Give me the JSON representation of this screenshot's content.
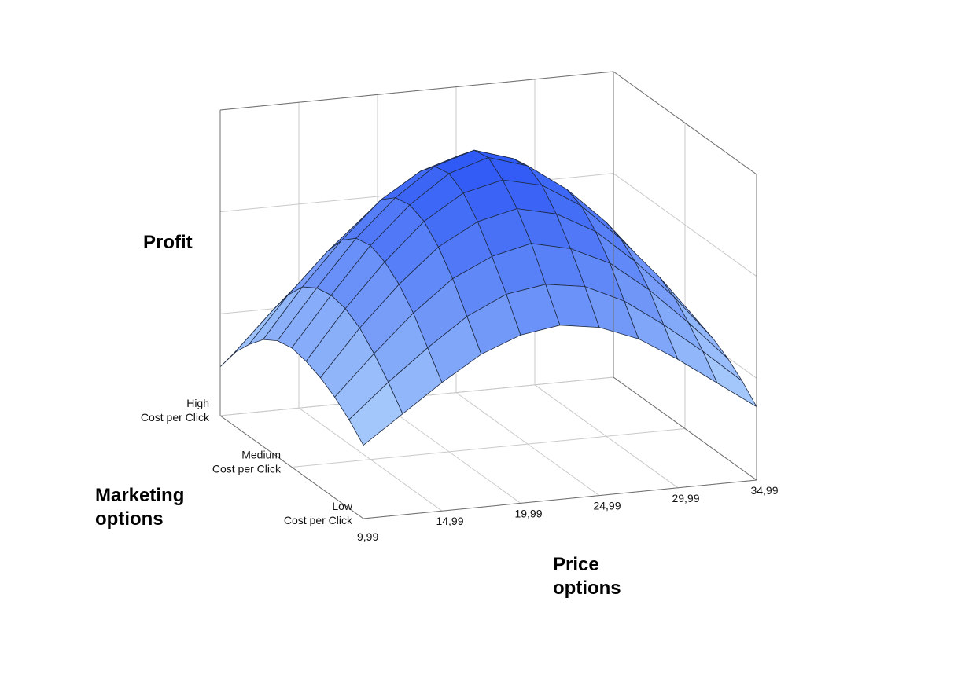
{
  "chart_data": {
    "type": "surface",
    "title": "",
    "zlabel": "Profit",
    "ylabel": [
      "Marketing",
      "options"
    ],
    "xlabel": [
      "Price",
      "options"
    ],
    "x_ticks": [
      "9,99",
      "14,99",
      "19,99",
      "24,99",
      "29,99",
      "34,99"
    ],
    "y_ticks": [
      [
        "Low",
        "Cost per Click"
      ],
      [
        "Medium",
        "Cost per Click"
      ],
      [
        "High",
        "Cost per Click"
      ]
    ],
    "x_range": [
      9.99,
      34.99
    ],
    "y_range": [
      "Low Cost per Click",
      "High Cost per Click"
    ],
    "z_range": [
      0,
      1
    ],
    "grid": true,
    "color_low": "#b9dcfb",
    "color_high": "#2b55f5",
    "surface": {
      "description_of_values": "relative profit (0-1 of z range), rows = marketing option from Low to High, columns = price 9,99 to 34,99",
      "x": [
        9.99,
        12.49,
        14.99,
        17.49,
        19.99,
        22.49,
        24.99,
        27.49,
        29.99,
        32.49,
        34.99
      ],
      "y": [
        0,
        0.1,
        0.2,
        0.3,
        0.4,
        0.5,
        0.6,
        0.7,
        0.8,
        0.9,
        1.0
      ],
      "z": [
        [
          0.24,
          0.33,
          0.42,
          0.5,
          0.55,
          0.57,
          0.55,
          0.5,
          0.42,
          0.33,
          0.24
        ],
        [
          0.29,
          0.4,
          0.5,
          0.59,
          0.65,
          0.67,
          0.65,
          0.59,
          0.5,
          0.4,
          0.29
        ],
        [
          0.33,
          0.46,
          0.58,
          0.68,
          0.74,
          0.77,
          0.74,
          0.68,
          0.58,
          0.46,
          0.33
        ],
        [
          0.36,
          0.51,
          0.64,
          0.75,
          0.82,
          0.85,
          0.82,
          0.75,
          0.64,
          0.51,
          0.36
        ],
        [
          0.38,
          0.54,
          0.68,
          0.8,
          0.88,
          0.91,
          0.88,
          0.8,
          0.68,
          0.54,
          0.38
        ],
        [
          0.39,
          0.55,
          0.7,
          0.82,
          0.91,
          0.95,
          0.91,
          0.82,
          0.7,
          0.55,
          0.39
        ],
        [
          0.38,
          0.54,
          0.69,
          0.81,
          0.9,
          0.94,
          0.9,
          0.81,
          0.69,
          0.54,
          0.38
        ],
        [
          0.35,
          0.51,
          0.65,
          0.77,
          0.85,
          0.89,
          0.85,
          0.77,
          0.65,
          0.51,
          0.35
        ],
        [
          0.3,
          0.45,
          0.58,
          0.69,
          0.77,
          0.8,
          0.77,
          0.69,
          0.58,
          0.45,
          0.3
        ],
        [
          0.24,
          0.37,
          0.49,
          0.59,
          0.66,
          0.69,
          0.66,
          0.59,
          0.49,
          0.37,
          0.24
        ],
        [
          0.16,
          0.27,
          0.38,
          0.46,
          0.52,
          0.55,
          0.52,
          0.46,
          0.38,
          0.27,
          0.16
        ]
      ]
    }
  }
}
